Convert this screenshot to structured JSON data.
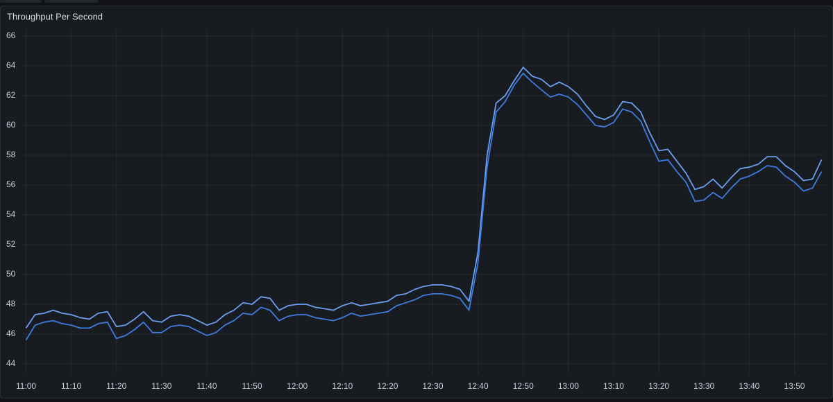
{
  "chart_data": {
    "type": "line",
    "title": "Throughput Per Second",
    "x": [
      "11:00",
      "11:02",
      "11:04",
      "11:06",
      "11:08",
      "11:10",
      "11:12",
      "11:14",
      "11:16",
      "11:18",
      "11:20",
      "11:22",
      "11:24",
      "11:26",
      "11:28",
      "11:30",
      "11:32",
      "11:34",
      "11:36",
      "11:38",
      "11:40",
      "11:42",
      "11:44",
      "11:46",
      "11:48",
      "11:50",
      "11:52",
      "11:54",
      "11:56",
      "11:58",
      "12:00",
      "12:02",
      "12:04",
      "12:06",
      "12:08",
      "12:10",
      "12:12",
      "12:14",
      "12:16",
      "12:18",
      "12:20",
      "12:22",
      "12:24",
      "12:26",
      "12:28",
      "12:30",
      "12:32",
      "12:34",
      "12:36",
      "12:38",
      "12:40",
      "12:42",
      "12:44",
      "12:46",
      "12:48",
      "12:50",
      "12:52",
      "12:54",
      "12:56",
      "12:58",
      "13:00",
      "13:02",
      "13:04",
      "13:06",
      "13:08",
      "13:10",
      "13:12",
      "13:14",
      "13:16",
      "13:18",
      "13:20",
      "13:22",
      "13:24",
      "13:26",
      "13:28",
      "13:30",
      "13:32",
      "13:34",
      "13:36",
      "13:38",
      "13:40",
      "13:42",
      "13:44",
      "13:46",
      "13:48",
      "13:50",
      "13:52",
      "13:54",
      "13:56"
    ],
    "series": [
      {
        "color": "#6a9ff2",
        "values": [
          46.4,
          47.3,
          47.4,
          47.6,
          47.4,
          47.3,
          47.1,
          47.0,
          47.4,
          47.5,
          46.5,
          46.6,
          47.0,
          47.5,
          46.9,
          46.8,
          47.2,
          47.3,
          47.2,
          46.9,
          46.6,
          46.8,
          47.3,
          47.6,
          48.1,
          48.0,
          48.5,
          48.4,
          47.6,
          47.9,
          48.0,
          48.0,
          47.8,
          47.7,
          47.6,
          47.9,
          48.1,
          47.9,
          48.0,
          48.1,
          48.2,
          48.6,
          48.7,
          49.0,
          49.2,
          49.3,
          49.3,
          49.2,
          49.0,
          48.2,
          51.5,
          58.0,
          61.5,
          62.0,
          63.0,
          63.9,
          63.3,
          63.1,
          62.6,
          62.9,
          62.6,
          62.1,
          61.3,
          60.6,
          60.4,
          60.7,
          61.6,
          61.5,
          60.9,
          59.5,
          58.3,
          58.4,
          57.6,
          56.8,
          55.7,
          55.9,
          56.4,
          55.8,
          56.5,
          57.1,
          57.2,
          57.4,
          57.9,
          57.9,
          57.3,
          56.9,
          56.3,
          56.4,
          57.7
        ]
      },
      {
        "color": "#3d7ce0",
        "values": [
          45.6,
          46.6,
          46.8,
          46.9,
          46.7,
          46.6,
          46.4,
          46.4,
          46.7,
          46.8,
          45.7,
          45.9,
          46.3,
          46.8,
          46.1,
          46.1,
          46.5,
          46.6,
          46.5,
          46.2,
          45.9,
          46.1,
          46.6,
          46.9,
          47.4,
          47.3,
          47.8,
          47.6,
          46.9,
          47.2,
          47.3,
          47.3,
          47.1,
          47.0,
          46.9,
          47.1,
          47.4,
          47.2,
          47.3,
          47.4,
          47.5,
          47.9,
          48.1,
          48.3,
          48.6,
          48.7,
          48.7,
          48.6,
          48.4,
          47.6,
          50.8,
          57.2,
          60.9,
          61.6,
          62.7,
          63.5,
          62.9,
          62.4,
          61.9,
          62.1,
          61.9,
          61.4,
          60.7,
          60.0,
          59.9,
          60.2,
          61.1,
          60.9,
          60.3,
          58.9,
          57.6,
          57.7,
          56.9,
          56.2,
          54.9,
          55.0,
          55.5,
          55.1,
          55.8,
          56.4,
          56.6,
          56.9,
          57.3,
          57.2,
          56.6,
          56.2,
          55.6,
          55.8,
          56.9
        ]
      }
    ],
    "xlim": [
      "10:59",
      "13:57"
    ],
    "xticks": [
      "11:00",
      "11:10",
      "11:20",
      "11:30",
      "11:40",
      "11:50",
      "12:00",
      "12:10",
      "12:20",
      "12:30",
      "12:40",
      "12:50",
      "13:00",
      "13:10",
      "13:20",
      "13:30",
      "13:40",
      "13:50"
    ],
    "ylim": [
      43.3,
      66
    ],
    "yticks": [
      44,
      46,
      48,
      50,
      52,
      54,
      56,
      58,
      60,
      62,
      64,
      66
    ],
    "grid": true
  }
}
